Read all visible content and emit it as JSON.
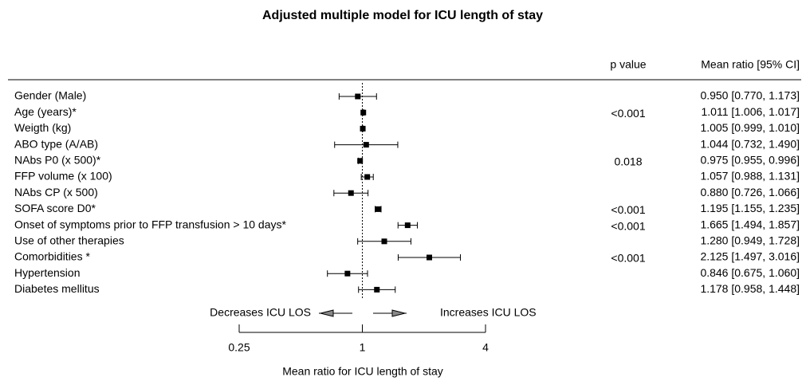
{
  "chart_data": {
    "type": "forest",
    "title": "Adjusted multiple model for ICU length of stay",
    "column_headers": {
      "p": "p value",
      "ci": "Mean ratio [95% CI]"
    },
    "categories": [
      "Gender (Male)",
      "Age (years)*",
      "Weigth (kg)",
      "ABO type (A/AB)",
      "NAbs P0 (x 500)*",
      "FFP volume (x 100)",
      "NAbs CP (x 500)",
      "SOFA score D0*",
      "Onset of symptoms prior to FFP transfusion > 10 days*",
      "Use of other therapies",
      "Comorbidities *",
      "Hypertension",
      "Diabetes mellitus"
    ],
    "values": [
      0.95,
      1.011,
      1.005,
      1.044,
      0.975,
      1.057,
      0.88,
      1.195,
      1.665,
      1.28,
      2.125,
      0.846,
      1.178
    ],
    "ci_lower": [
      0.77,
      1.006,
      0.999,
      0.732,
      0.955,
      0.988,
      0.726,
      1.155,
      1.494,
      0.949,
      1.497,
      0.675,
      0.958
    ],
    "ci_upper": [
      1.173,
      1.017,
      1.01,
      1.49,
      0.996,
      1.131,
      1.066,
      1.235,
      1.857,
      1.728,
      3.016,
      1.06,
      1.448
    ],
    "value_labels": [
      "0.950 [0.770, 1.173]",
      "1.011 [1.006, 1.017]",
      "1.005 [0.999, 1.010]",
      "1.044 [0.732, 1.490]",
      "0.975 [0.955, 0.996]",
      "1.057 [0.988, 1.131]",
      "0.880 [0.726, 1.066]",
      "1.195 [1.155, 1.235]",
      "1.665 [1.494, 1.857]",
      "1.280 [0.949, 1.728]",
      "2.125 [1.497, 3.016]",
      "0.846 [0.675, 1.060]",
      "1.178 [0.958, 1.448]"
    ],
    "p_values": [
      null,
      "<0.001",
      null,
      null,
      "0.018",
      null,
      null,
      "<0.001",
      "<0.001",
      null,
      "<0.001",
      null,
      null
    ],
    "reference_line": 1,
    "xscale": "log",
    "xlim": [
      0.25,
      4
    ],
    "xticks": [
      0.25,
      1,
      4
    ],
    "xlabel": "Mean ratio for ICU length of stay",
    "annotations": {
      "left": "Decreases ICU LOS",
      "right": "Increases ICU LOS"
    },
    "color": "#000000"
  }
}
